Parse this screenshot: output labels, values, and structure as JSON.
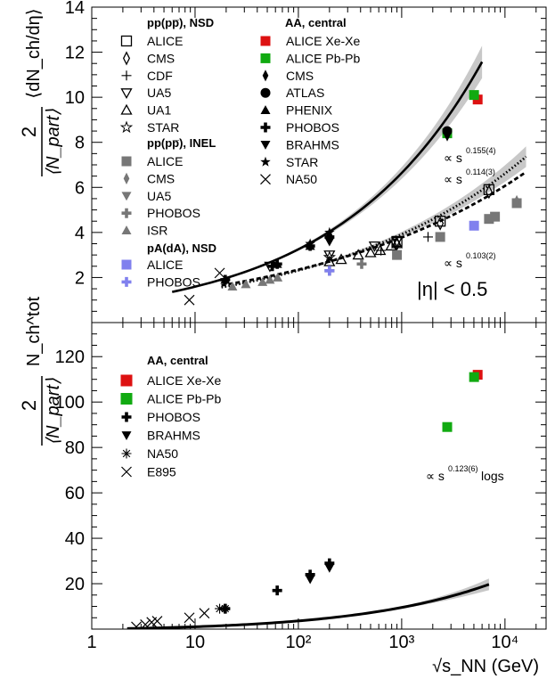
{
  "chart_data": [
    {
      "type": "scatter",
      "panel": "top",
      "ylabel_fraction": "2",
      "ylabel_denominator": "⟨N_part⟩",
      "ylabel_quantity": "⟨dN_ch/dη⟩",
      "xscale": "log",
      "xlim": [
        1,
        25000
      ],
      "ylim": [
        0,
        14
      ],
      "yticks": [
        "2",
        "4",
        "6",
        "8",
        "10",
        "12",
        "14"
      ],
      "eta_cut": "|η| < 0.5",
      "legend_titles": {
        "pp_nsd": "pp(pp̅), NSD",
        "pp_inel": "pp(pp̅), INEL",
        "pa_nsd": "pA(dA), NSD",
        "aa_central": "AA, central"
      },
      "fit_labels": [
        {
          "text": "∝ s",
          "exponent": "0.155(4)"
        },
        {
          "text": "∝ s",
          "exponent": "0.114(3)"
        },
        {
          "text": "∝ s",
          "exponent": "0.103(2)"
        }
      ],
      "series": [
        {
          "name": "ALICE",
          "group": "pp_nsd",
          "marker": "open-square",
          "color": "#000000",
          "x": [
            900,
            2360,
            7000
          ],
          "y": [
            3.6,
            4.5,
            5.9
          ]
        },
        {
          "name": "CMS",
          "group": "pp_nsd",
          "marker": "open-diamond",
          "color": "#000000",
          "x": [
            900,
            2360,
            7000
          ],
          "y": [
            3.5,
            4.4,
            5.8
          ]
        },
        {
          "name": "CDF",
          "group": "pp_nsd",
          "marker": "plus",
          "color": "#000000",
          "x": [
            630,
            1800
          ],
          "y": [
            3.2,
            3.8
          ]
        },
        {
          "name": "UA5",
          "group": "pp_nsd",
          "marker": "open-triangle-down",
          "color": "#000000",
          "x": [
            53,
            200,
            546,
            900
          ],
          "y": [
            2.5,
            3.0,
            3.4,
            3.6
          ]
        },
        {
          "name": "UA1",
          "group": "pp_nsd",
          "marker": "open-triangle-up",
          "color": "#000000",
          "x": [
            200,
            260,
            380,
            500,
            620,
            790,
            900
          ],
          "y": [
            2.7,
            2.8,
            3.0,
            3.1,
            3.2,
            3.4,
            3.5
          ]
        },
        {
          "name": "STAR",
          "group": "pp_nsd",
          "marker": "open-star",
          "color": "#000000",
          "x": [
            200
          ],
          "y": [
            2.9
          ]
        },
        {
          "name": "ALICE",
          "group": "pp_inel",
          "marker": "square",
          "color": "#777777",
          "x": [
            900,
            2360,
            7000,
            8000,
            13000
          ],
          "y": [
            3.0,
            3.8,
            4.6,
            4.7,
            5.3
          ]
        },
        {
          "name": "CMS",
          "group": "pp_inel",
          "marker": "diamond",
          "color": "#777777",
          "x": [
            13000
          ],
          "y": [
            5.4
          ]
        },
        {
          "name": "UA5",
          "group": "pp_inel",
          "marker": "triangle-down",
          "color": "#777777",
          "x": [
            900
          ],
          "y": [
            3.0
          ]
        },
        {
          "name": "PHOBOS",
          "group": "pp_inel",
          "marker": "cross",
          "color": "#777777",
          "x": [
            200,
            410
          ],
          "y": [
            2.3,
            2.6
          ]
        },
        {
          "name": "ISR",
          "group": "pp_inel",
          "marker": "triangle-up",
          "color": "#777777",
          "x": [
            23,
            31,
            45,
            53,
            63
          ],
          "y": [
            1.6,
            1.7,
            1.8,
            1.9,
            2.0
          ]
        },
        {
          "name": "ALICE",
          "group": "pa_nsd",
          "marker": "square",
          "color": "#8080ee",
          "x": [
            5020
          ],
          "y": [
            4.3
          ]
        },
        {
          "name": "PHOBOS",
          "group": "pa_nsd",
          "marker": "cross",
          "color": "#8080ee",
          "x": [
            200
          ],
          "y": [
            2.3
          ]
        },
        {
          "name": "ALICE Xe-Xe",
          "group": "aa_central",
          "marker": "square",
          "color": "#dd1111",
          "x": [
            5440
          ],
          "y": [
            9.9
          ]
        },
        {
          "name": "ALICE Pb-Pb",
          "group": "aa_central",
          "marker": "square",
          "color": "#11aa11",
          "x": [
            2760,
            5020
          ],
          "y": [
            8.4,
            10.1
          ]
        },
        {
          "name": "CMS",
          "group": "aa_central",
          "marker": "diamond",
          "color": "#000000",
          "x": [
            2760
          ],
          "y": [
            8.3
          ]
        },
        {
          "name": "ATLAS",
          "group": "aa_central",
          "marker": "circle",
          "color": "#000000",
          "x": [
            2760
          ],
          "y": [
            8.5
          ]
        },
        {
          "name": "PHENIX",
          "group": "aa_central",
          "marker": "triangle-up",
          "color": "#000000",
          "x": [
            19.6,
            62.4,
            130,
            200
          ],
          "y": [
            1.9,
            2.6,
            3.4,
            3.9
          ]
        },
        {
          "name": "PHOBOS",
          "group": "aa_central",
          "marker": "cross",
          "color": "#000000",
          "x": [
            19.6,
            56,
            62.4,
            130,
            200
          ],
          "y": [
            1.9,
            2.5,
            2.6,
            3.4,
            3.8
          ]
        },
        {
          "name": "BRAHMS",
          "group": "aa_central",
          "marker": "triangle-down",
          "color": "#000000",
          "x": [
            200
          ],
          "y": [
            3.6
          ]
        },
        {
          "name": "STAR",
          "group": "aa_central",
          "marker": "star",
          "color": "#000000",
          "x": [
            130,
            200
          ],
          "y": [
            3.5,
            4.0
          ]
        },
        {
          "name": "NA50",
          "group": "aa_central",
          "marker": "x",
          "color": "#000000",
          "x": [
            8.8,
            17.3
          ],
          "y": [
            1.0,
            2.2
          ]
        }
      ],
      "fits": [
        {
          "label_index": 0,
          "style": "solid",
          "a": 0.78,
          "exp": 0.155,
          "x_range": [
            6,
            6000
          ],
          "band": true
        },
        {
          "label_index": 1,
          "style": "dotted",
          "a": 0.81,
          "exp": 0.114,
          "x_range": [
            18,
            16000
          ],
          "band": true
        },
        {
          "label_index": 2,
          "style": "dashed",
          "a": 0.91,
          "exp": 0.103,
          "x_range": [
            18,
            16000
          ],
          "band": false
        }
      ]
    },
    {
      "type": "scatter",
      "panel": "bottom",
      "ylabel_fraction": "2",
      "ylabel_denominator": "⟨N_part⟩",
      "ylabel_quantity": "N_ch^tot",
      "xlabel": "√s_NN (GeV)",
      "xscale": "log",
      "xlim": [
        1,
        25000
      ],
      "ylim": [
        0,
        135
      ],
      "yticks": [
        "20",
        "40",
        "60",
        "80",
        "100",
        "120"
      ],
      "xticks": [
        "1",
        "10",
        "10²",
        "10³",
        "10⁴"
      ],
      "legend_title": "AA, central",
      "fit_label": {
        "text": "∝ s",
        "exponent": "0.123(6)",
        "suffix": "logs"
      },
      "series": [
        {
          "name": "ALICE Xe-Xe",
          "marker": "square",
          "color": "#dd1111",
          "x": [
            5440
          ],
          "y": [
            112
          ]
        },
        {
          "name": "ALICE Pb-Pb",
          "marker": "square",
          "color": "#11aa11",
          "x": [
            2760,
            5020
          ],
          "y": [
            89,
            111
          ]
        },
        {
          "name": "PHOBOS",
          "marker": "cross",
          "color": "#000000",
          "x": [
            19.6,
            62.4,
            130,
            200
          ],
          "y": [
            9,
            17,
            24,
            29
          ]
        },
        {
          "name": "BRAHMS",
          "marker": "triangle-down",
          "color": "#000000",
          "x": [
            130,
            200
          ],
          "y": [
            22,
            27
          ]
        },
        {
          "name": "NA50",
          "marker": "asterisk",
          "color": "#000000",
          "x": [
            17.3,
            19.6
          ],
          "y": [
            9,
            9
          ]
        },
        {
          "name": "E895",
          "marker": "x",
          "color": "#000000",
          "x": [
            2.7,
            3.3,
            3.8,
            4.3,
            8.8,
            12.3
          ],
          "y": [
            1.0,
            2.0,
            3.0,
            3.5,
            5.0,
            7.0
          ]
        }
      ],
      "fit": {
        "style": "solid",
        "c": 0.126,
        "exp": 0.123,
        "x_range": [
          2.2,
          7000
        ],
        "band": true
      }
    }
  ]
}
